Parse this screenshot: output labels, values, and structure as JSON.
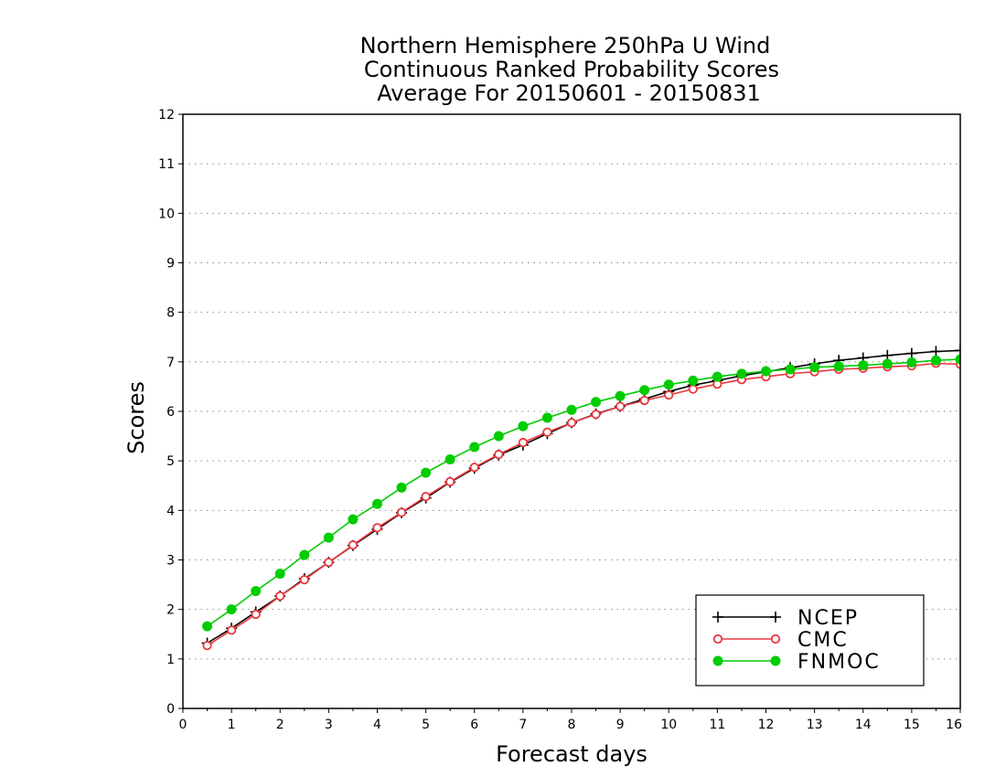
{
  "chart_data": {
    "type": "line",
    "title_lines": [
      "Northern Hemisphere 250hPa U Wind",
      "Continuous Ranked Probability Scores",
      "Average For 20150601 - 20150831"
    ],
    "xlabel": "Forecast days",
    "ylabel": "Scores",
    "xlim": [
      0,
      16
    ],
    "ylim": [
      0,
      12
    ],
    "xticks": [
      "0",
      "1",
      "2",
      "3",
      "4",
      "5",
      "6",
      "7",
      "8",
      "9",
      "10",
      "11",
      "12",
      "13",
      "14",
      "15",
      "16"
    ],
    "yticks": [
      "0",
      "1",
      "2",
      "3",
      "4",
      "5",
      "6",
      "7",
      "8",
      "9",
      "10",
      "11",
      "12"
    ],
    "grid": "horizontal dotted",
    "legend_position": "bottom-right",
    "x": [
      0.5,
      1,
      1.5,
      2,
      2.5,
      3,
      3.5,
      4,
      4.5,
      5,
      5.5,
      6,
      6.5,
      7,
      7.5,
      8,
      8.5,
      9,
      9.5,
      10,
      10.5,
      11,
      11.5,
      12,
      12.5,
      13,
      13.5,
      14,
      14.5,
      15,
      15.5,
      16
    ],
    "series": [
      {
        "name": "NCEP",
        "color": "#000000",
        "marker": "plus",
        "values": [
          1.32,
          1.62,
          1.95,
          2.27,
          2.62,
          2.95,
          3.29,
          3.62,
          3.95,
          4.25,
          4.57,
          4.85,
          5.12,
          5.32,
          5.55,
          5.77,
          5.95,
          6.1,
          6.25,
          6.4,
          6.53,
          6.62,
          6.72,
          6.8,
          6.88,
          6.96,
          7.03,
          7.08,
          7.13,
          7.17,
          7.21,
          7.23
        ]
      },
      {
        "name": "CMC",
        "color": "#e8383d",
        "marker": "open-circle",
        "values": [
          1.27,
          1.58,
          1.9,
          2.27,
          2.6,
          2.95,
          3.3,
          3.65,
          3.96,
          4.28,
          4.58,
          4.87,
          5.13,
          5.37,
          5.58,
          5.77,
          5.94,
          6.1,
          6.22,
          6.33,
          6.45,
          6.55,
          6.64,
          6.7,
          6.76,
          6.8,
          6.85,
          6.87,
          6.9,
          6.92,
          6.97,
          6.95
        ]
      },
      {
        "name": "FNMOC",
        "color": "#00cc00",
        "marker": "filled-circle",
        "values": [
          1.66,
          2.0,
          2.37,
          2.72,
          3.1,
          3.45,
          3.82,
          4.13,
          4.46,
          4.76,
          5.03,
          5.28,
          5.5,
          5.7,
          5.87,
          6.03,
          6.19,
          6.31,
          6.43,
          6.54,
          6.62,
          6.7,
          6.76,
          6.81,
          6.85,
          6.89,
          6.91,
          6.93,
          6.96,
          6.99,
          7.03,
          7.05
        ]
      }
    ]
  }
}
